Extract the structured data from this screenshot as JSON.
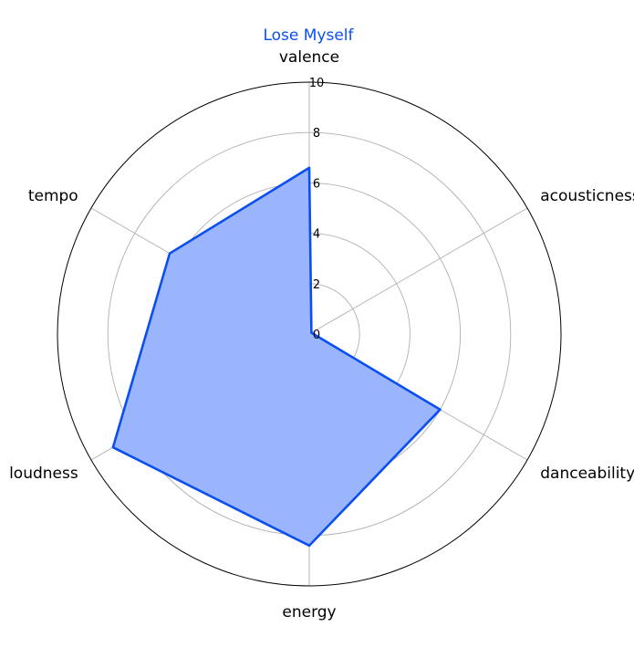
{
  "chart_data": {
    "type": "radar",
    "title": "Lose Myself",
    "title_color": "#0b4ff0",
    "series_color": "#0b4ff0",
    "fill_color": "#9bb5fd",
    "axes": [
      "valence",
      "acousticness",
      "danceability",
      "energy",
      "loudness",
      "tempo"
    ],
    "series": [
      {
        "values": [
          6.6,
          0.1,
          6.0,
          8.4,
          9.0,
          6.4
        ]
      }
    ],
    "r_ticks": [
      "0",
      "2",
      "4",
      "6",
      "8",
      "10"
    ],
    "rlim": [
      0,
      10
    ],
    "grid": true
  }
}
